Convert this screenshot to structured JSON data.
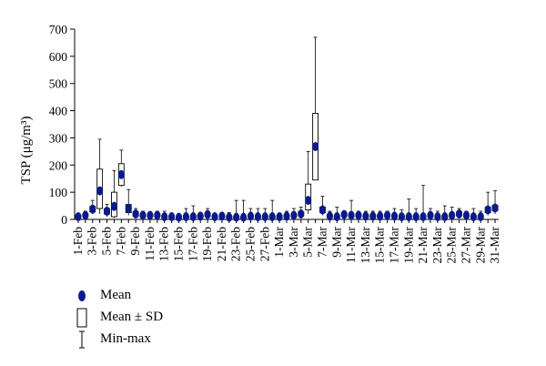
{
  "chart_data": {
    "type": "boxplot",
    "ylabel": "TSP (μg/m³)",
    "ylim": [
      0,
      700
    ],
    "yticks": [
      0,
      100,
      200,
      300,
      400,
      500,
      600,
      700
    ],
    "xlabels": [
      "1-Feb",
      "3-Feb",
      "5-Feb",
      "7-Feb",
      "9-Feb",
      "11-Feb",
      "13-Feb",
      "15-Feb",
      "17-Feb",
      "19-Feb",
      "21-Feb",
      "23-Feb",
      "25-Feb",
      "27-Feb",
      "1-Mar",
      "3-Mar",
      "5-Mar",
      "7-Mar",
      "9-Mar",
      "11-Mar",
      "13-Mar",
      "15-Mar",
      "17-Mar",
      "19-Mar",
      "21-Mar",
      "23-Mar",
      "25-Mar",
      "27-Mar",
      "29-Mar",
      "31-Mar"
    ],
    "x": [
      "1-Feb",
      "2-Feb",
      "3-Feb",
      "4-Feb",
      "5-Feb",
      "6-Feb",
      "7-Feb",
      "8-Feb",
      "9-Feb",
      "10-Feb",
      "11-Feb",
      "12-Feb",
      "13-Feb",
      "14-Feb",
      "15-Feb",
      "16-Feb",
      "17-Feb",
      "18-Feb",
      "19-Feb",
      "20-Feb",
      "21-Feb",
      "22-Feb",
      "23-Feb",
      "24-Feb",
      "25-Feb",
      "26-Feb",
      "27-Feb",
      "28-Feb",
      "1-Mar",
      "2-Mar",
      "3-Mar",
      "4-Mar",
      "5-Mar",
      "6-Mar",
      "7-Mar",
      "8-Mar",
      "9-Mar",
      "10-Mar",
      "11-Mar",
      "12-Mar",
      "13-Mar",
      "14-Mar",
      "15-Mar",
      "16-Mar",
      "17-Mar",
      "18-Mar",
      "19-Mar",
      "20-Mar",
      "21-Mar",
      "22-Mar",
      "23-Mar",
      "24-Mar",
      "25-Mar",
      "26-Mar",
      "27-Mar",
      "28-Mar",
      "29-Mar",
      "30-Mar",
      "31-Mar"
    ],
    "mean": [
      10,
      15,
      38,
      105,
      30,
      48,
      165,
      40,
      20,
      15,
      15,
      15,
      10,
      10,
      8,
      10,
      10,
      12,
      18,
      10,
      12,
      8,
      8,
      8,
      12,
      10,
      10,
      10,
      10,
      12,
      15,
      20,
      70,
      268,
      35,
      12,
      10,
      18,
      15,
      15,
      12,
      12,
      12,
      15,
      12,
      10,
      10,
      10,
      10,
      15,
      10,
      10,
      15,
      20,
      15,
      10,
      10,
      35,
      42
    ],
    "sd_low": [
      8,
      11,
      28,
      40,
      20,
      10,
      125,
      25,
      12,
      10,
      10,
      10,
      6,
      6,
      4,
      6,
      6,
      8,
      12,
      6,
      8,
      4,
      4,
      4,
      8,
      6,
      6,
      6,
      6,
      8,
      10,
      14,
      35,
      145,
      25,
      8,
      6,
      12,
      10,
      10,
      8,
      8,
      8,
      10,
      8,
      6,
      6,
      6,
      6,
      10,
      6,
      6,
      10,
      14,
      10,
      6,
      6,
      25,
      32
    ],
    "sd_high": [
      14,
      20,
      48,
      185,
      40,
      100,
      205,
      55,
      28,
      20,
      20,
      20,
      14,
      14,
      12,
      14,
      14,
      16,
      24,
      14,
      16,
      12,
      12,
      12,
      16,
      14,
      14,
      14,
      14,
      16,
      20,
      28,
      130,
      390,
      45,
      18,
      14,
      24,
      20,
      20,
      16,
      16,
      16,
      20,
      16,
      14,
      14,
      14,
      14,
      20,
      14,
      14,
      20,
      28,
      20,
      14,
      14,
      45,
      52
    ],
    "min": [
      2,
      5,
      20,
      20,
      10,
      5,
      120,
      15,
      5,
      5,
      5,
      5,
      2,
      2,
      2,
      3,
      3,
      5,
      8,
      3,
      5,
      2,
      2,
      2,
      5,
      3,
      3,
      3,
      3,
      5,
      5,
      10,
      20,
      145,
      15,
      3,
      3,
      8,
      5,
      5,
      5,
      5,
      5,
      5,
      5,
      3,
      3,
      3,
      3,
      5,
      3,
      3,
      8,
      10,
      8,
      3,
      3,
      15,
      20
    ],
    "max": [
      20,
      30,
      70,
      295,
      55,
      180,
      255,
      110,
      40,
      30,
      25,
      30,
      30,
      20,
      20,
      40,
      50,
      25,
      40,
      20,
      25,
      25,
      70,
      70,
      40,
      40,
      40,
      70,
      20,
      30,
      40,
      45,
      250,
      670,
      85,
      30,
      45,
      30,
      70,
      30,
      30,
      30,
      30,
      30,
      40,
      35,
      75,
      40,
      125,
      40,
      30,
      50,
      45,
      40,
      30,
      40,
      30,
      100,
      105
    ]
  },
  "legend": {
    "mean_label": "Mean",
    "sd_label": "Mean ± SD",
    "minmax_label": "Min-max"
  },
  "colors": {
    "mean_marker": "#0a1a8c",
    "box_stroke": "#000000",
    "axis": "#000000"
  }
}
